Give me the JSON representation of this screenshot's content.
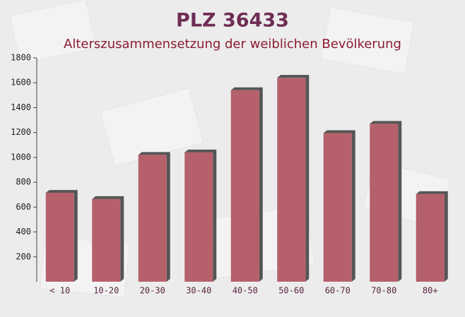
{
  "chart_data": {
    "type": "bar",
    "title": "PLZ 36433",
    "subtitle": "Alterszusammensetzung der weiblichen Bevölkerung",
    "categories": [
      "< 10",
      "10-20",
      "20-30",
      "30-40",
      "40-50",
      "50-60",
      "60-70",
      "70-80",
      "80+"
    ],
    "values": [
      715,
      665,
      1020,
      1040,
      1540,
      1640,
      1195,
      1270,
      705
    ],
    "color": "#b5606b",
    "ylim": [
      0,
      1800
    ],
    "yticks": [
      200,
      400,
      600,
      800,
      1000,
      1200,
      1400,
      1600,
      1800
    ]
  }
}
